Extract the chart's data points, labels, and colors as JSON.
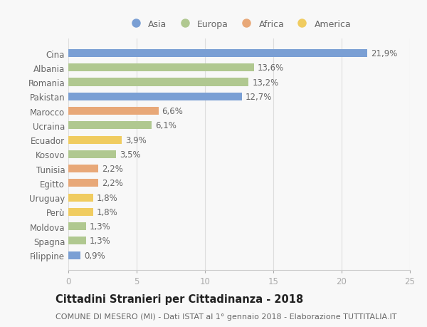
{
  "countries": [
    "Cina",
    "Albania",
    "Romania",
    "Pakistan",
    "Marocco",
    "Ucraina",
    "Ecuador",
    "Kosovo",
    "Tunisia",
    "Egitto",
    "Uruguay",
    "Perù",
    "Moldova",
    "Spagna",
    "Filippine"
  ],
  "values": [
    21.9,
    13.6,
    13.2,
    12.7,
    6.6,
    6.1,
    3.9,
    3.5,
    2.2,
    2.2,
    1.8,
    1.8,
    1.3,
    1.3,
    0.9
  ],
  "continents": [
    "Asia",
    "Europa",
    "Europa",
    "Asia",
    "Africa",
    "Europa",
    "America",
    "Europa",
    "Africa",
    "Africa",
    "America",
    "America",
    "Europa",
    "Europa",
    "Asia"
  ],
  "continent_colors": {
    "Asia": "#7a9fd4",
    "Europa": "#b0c890",
    "Africa": "#e8a878",
    "America": "#f0cc60"
  },
  "legend_order": [
    "Asia",
    "Europa",
    "Africa",
    "America"
  ],
  "title": "Cittadini Stranieri per Cittadinanza - 2018",
  "subtitle": "COMUNE DI MESERO (MI) - Dati ISTAT al 1° gennaio 2018 - Elaborazione TUTTITALIA.IT",
  "xlim": [
    0,
    25
  ],
  "xticks": [
    0,
    5,
    10,
    15,
    20,
    25
  ],
  "background_color": "#f8f8f8",
  "bar_height": 0.55,
  "label_fontsize": 8.5,
  "title_fontsize": 10.5,
  "subtitle_fontsize": 8,
  "tick_fontsize": 8.5,
  "legend_fontsize": 9
}
